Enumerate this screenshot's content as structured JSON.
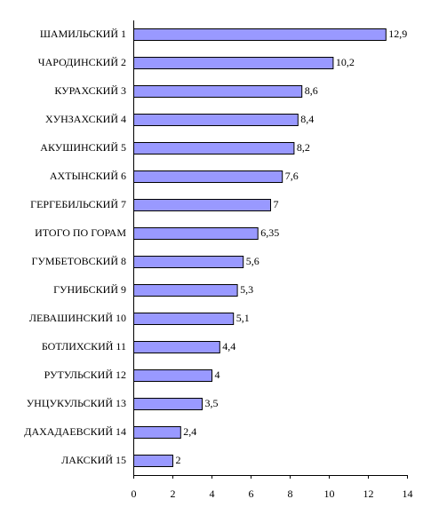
{
  "chart_data": {
    "type": "bar",
    "orientation": "horizontal",
    "categories": [
      "ШАМИЛЬСКИЙ 1",
      "ЧАРОДИНСКИЙ 2",
      "КУРАХСКИЙ 3",
      "ХУНЗАХСКИЙ 4",
      "АКУШИНСКИЙ 5",
      "АХТЫНСКИЙ 6",
      "ГЕРГЕБИЛЬСКИЙ 7",
      "ИТОГО ПО ГОРАМ",
      "ГУМБЕТОВСКИЙ 8",
      "ГУНИБСКИЙ 9",
      "ЛЕВАШИНСКИЙ 10",
      "БОТЛИХСКИЙ 11",
      "РУТУЛЬСКИЙ 12",
      "УНЦУКУЛЬСКИЙ 13",
      "ДАХАДАЕВСКИЙ 14",
      "ЛАКСКИЙ 15"
    ],
    "values": [
      12.9,
      10.2,
      8.6,
      8.4,
      8.2,
      7.6,
      7,
      6.35,
      5.6,
      5.3,
      5.1,
      4.4,
      4,
      3.5,
      2.4,
      2
    ],
    "value_labels": [
      "12,9",
      "10,2",
      "8,6",
      "8,4",
      "8,2",
      "7,6",
      "7",
      "6,35",
      "5,6",
      "5,3",
      "5,1",
      "4,4",
      "4",
      "3,5",
      "2,4",
      "2"
    ],
    "color": "#9999ff",
    "xlim": [
      0,
      14
    ],
    "xticks": [
      0,
      2,
      4,
      6,
      8,
      10,
      12,
      14
    ],
    "grid": false
  }
}
